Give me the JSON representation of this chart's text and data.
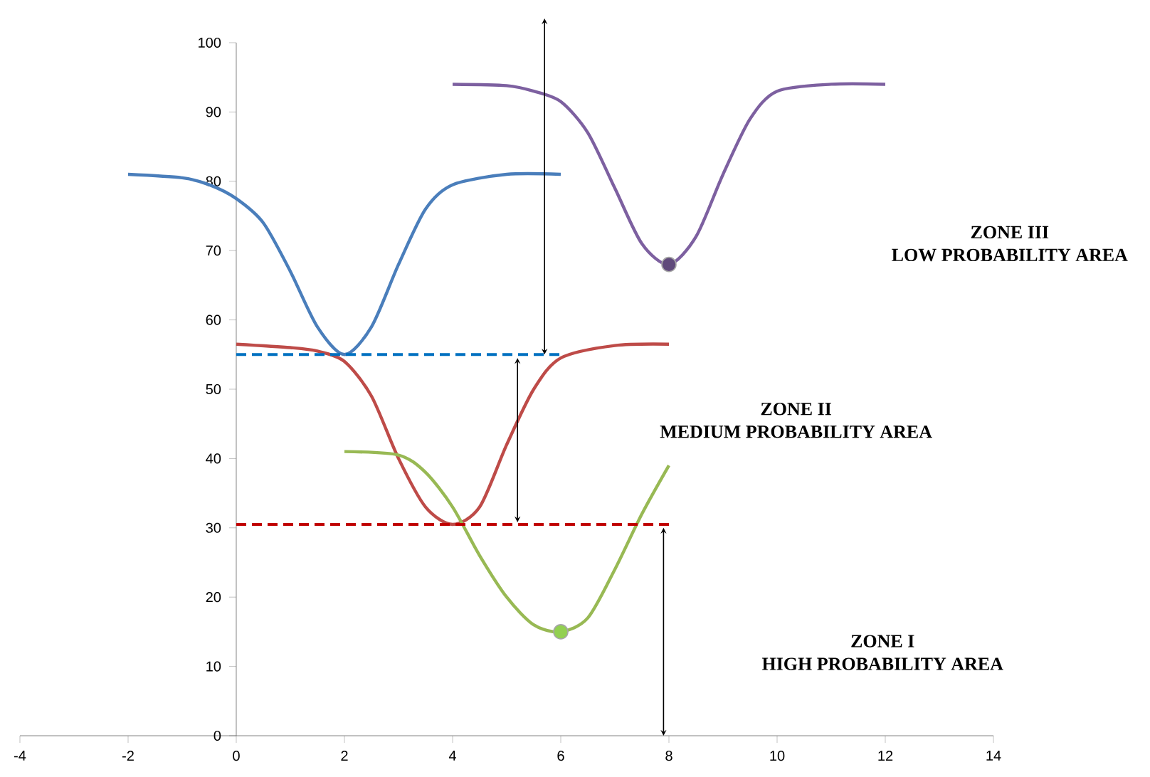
{
  "chart_data": {
    "type": "line",
    "xlim": [
      -4,
      14
    ],
    "ylim": [
      0,
      100
    ],
    "xticks": [
      -4,
      -2,
      0,
      2,
      4,
      6,
      8,
      10,
      12,
      14
    ],
    "yticks": [
      0,
      10,
      20,
      30,
      40,
      50,
      60,
      70,
      80,
      90,
      100
    ],
    "series": [
      {
        "type": "line",
        "color": "#4a7ebb",
        "marker": "none",
        "x": [
          -2,
          -1,
          -0.5,
          0,
          0.5,
          1,
          1.5,
          2,
          2.5,
          3,
          3.5,
          4,
          5,
          6
        ],
        "values": [
          81,
          80.5,
          79.5,
          77.5,
          74,
          67,
          59,
          55,
          59,
          68,
          76,
          79.5,
          81,
          81
        ]
      },
      {
        "type": "line",
        "color": "#7d60a0",
        "marker": "none",
        "x": [
          4,
          5,
          5.5,
          6,
          6.5,
          7,
          7.5,
          8,
          8.5,
          9,
          9.5,
          10,
          11,
          12
        ],
        "values": [
          94,
          93.8,
          93,
          91.5,
          87,
          79,
          71,
          68,
          72,
          81,
          89,
          93,
          94,
          94
        ]
      },
      {
        "type": "line",
        "color": "#be4b48",
        "marker": "none",
        "x": [
          0,
          1,
          1.5,
          2,
          2.5,
          3,
          3.5,
          4,
          4.5,
          5,
          5.5,
          6,
          7,
          8
        ],
        "values": [
          56.5,
          56,
          55.5,
          54,
          49,
          40,
          33,
          30.5,
          33,
          42,
          50,
          54.5,
          56.3,
          56.5
        ]
      },
      {
        "type": "line",
        "color": "#98b954",
        "marker": "none",
        "x": [
          2,
          3,
          3.5,
          4,
          4.5,
          5,
          5.5,
          6,
          6.5,
          7,
          7.5,
          8
        ],
        "values": [
          41,
          40.5,
          38,
          33,
          26,
          20,
          16,
          15,
          17,
          24,
          32,
          39
        ]
      },
      {
        "type": "line",
        "color": "#0070c0",
        "marker": "none",
        "line_style": "dashed",
        "x": [
          0,
          6
        ],
        "values": [
          55,
          55
        ]
      },
      {
        "type": "line",
        "color": "#c00000",
        "marker": "none",
        "line_style": "dashed",
        "x": [
          0,
          8
        ],
        "values": [
          30.5,
          30.5
        ]
      },
      {
        "type": "scatter",
        "color": "#604a7b",
        "marker": "circle",
        "x": [
          8
        ],
        "values": [
          68
        ]
      },
      {
        "type": "scatter",
        "color": "#92d050",
        "marker": "circle",
        "x": [
          6
        ],
        "values": [
          15
        ]
      }
    ],
    "annotations": [
      "ZONE III",
      "LOW PROBABILITY AREA",
      "ZONE II",
      "MEDIUM PROBABILITY AREA",
      "ZONE I",
      "HIGH PROBABILITY AREA"
    ]
  }
}
